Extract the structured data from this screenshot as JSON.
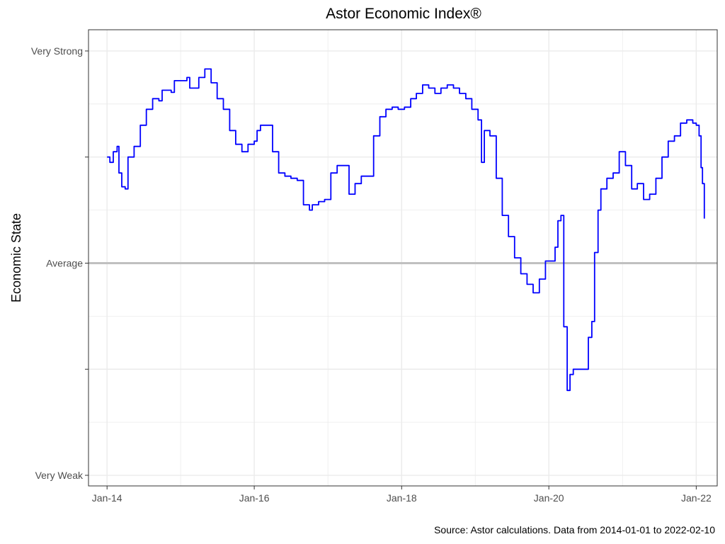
{
  "chart_data": {
    "type": "line",
    "title": "Astor Economic Index®",
    "ylabel": "Economic State",
    "xlabel": "",
    "caption": "Source: Astor calculations. Data from 2014-01-01 to 2022-02-10",
    "xlim": [
      "2013-10-01",
      "2022-04-15"
    ],
    "ylim": [
      -2.1,
      2.2
    ],
    "x_ticks": [
      {
        "date": "2014-01-01",
        "label": "Jan-14"
      },
      {
        "date": "2016-01-01",
        "label": "Jan-16"
      },
      {
        "date": "2018-01-01",
        "label": "Jan-18"
      },
      {
        "date": "2020-01-01",
        "label": "Jan-20"
      },
      {
        "date": "2022-01-01",
        "label": "Jan-22"
      }
    ],
    "y_ticks": [
      {
        "value": 2,
        "label": "Very Strong"
      },
      {
        "value": 1,
        "label": ""
      },
      {
        "value": 0,
        "label": "Average"
      },
      {
        "value": -1,
        "label": ""
      },
      {
        "value": -2,
        "label": "Very Weak"
      }
    ],
    "reference_line": {
      "value": 0,
      "color": "#c0c0c0"
    },
    "grid": true,
    "colors": {
      "series": "#0000ff",
      "grid": "#ebebeb",
      "border": "#333333"
    },
    "series": [
      {
        "values": [
          [
            "2014-01-01",
            1.0
          ],
          [
            "2014-01-15",
            0.95
          ],
          [
            "2014-02-01",
            1.05
          ],
          [
            "2014-02-20",
            1.1
          ],
          [
            "2014-03-01",
            0.85
          ],
          [
            "2014-03-15",
            0.72
          ],
          [
            "2014-04-01",
            0.7
          ],
          [
            "2014-04-15",
            1.0
          ],
          [
            "2014-05-15",
            1.1
          ],
          [
            "2014-06-15",
            1.3
          ],
          [
            "2014-07-15",
            1.45
          ],
          [
            "2014-08-15",
            1.55
          ],
          [
            "2014-09-15",
            1.53
          ],
          [
            "2014-10-01",
            1.63
          ],
          [
            "2014-11-15",
            1.61
          ],
          [
            "2014-12-01",
            1.72
          ],
          [
            "2015-02-01",
            1.75
          ],
          [
            "2015-02-15",
            1.65
          ],
          [
            "2015-04-01",
            1.75
          ],
          [
            "2015-05-01",
            1.83
          ],
          [
            "2015-06-01",
            1.7
          ],
          [
            "2015-07-01",
            1.55
          ],
          [
            "2015-08-01",
            1.45
          ],
          [
            "2015-09-01",
            1.25
          ],
          [
            "2015-10-01",
            1.12
          ],
          [
            "2015-11-01",
            1.05
          ],
          [
            "2015-12-01",
            1.12
          ],
          [
            "2016-01-01",
            1.15
          ],
          [
            "2016-01-15",
            1.25
          ],
          [
            "2016-02-01",
            1.3
          ],
          [
            "2016-03-01",
            1.3
          ],
          [
            "2016-04-01",
            1.05
          ],
          [
            "2016-05-01",
            0.85
          ],
          [
            "2016-06-01",
            0.82
          ],
          [
            "2016-07-01",
            0.8
          ],
          [
            "2016-08-01",
            0.78
          ],
          [
            "2016-09-01",
            0.55
          ],
          [
            "2016-10-01",
            0.5
          ],
          [
            "2016-10-15",
            0.55
          ],
          [
            "2016-11-15",
            0.58
          ],
          [
            "2016-12-15",
            0.6
          ],
          [
            "2017-01-15",
            0.85
          ],
          [
            "2017-02-15",
            0.92
          ],
          [
            "2017-03-15",
            0.92
          ],
          [
            "2017-04-15",
            0.65
          ],
          [
            "2017-05-15",
            0.75
          ],
          [
            "2017-06-15",
            0.82
          ],
          [
            "2017-07-15",
            0.82
          ],
          [
            "2017-08-15",
            1.2
          ],
          [
            "2017-09-15",
            1.38
          ],
          [
            "2017-10-15",
            1.45
          ],
          [
            "2017-11-15",
            1.47
          ],
          [
            "2017-12-15",
            1.45
          ],
          [
            "2018-01-15",
            1.47
          ],
          [
            "2018-02-15",
            1.55
          ],
          [
            "2018-03-15",
            1.6
          ],
          [
            "2018-04-15",
            1.68
          ],
          [
            "2018-05-15",
            1.65
          ],
          [
            "2018-06-15",
            1.6
          ],
          [
            "2018-07-15",
            1.65
          ],
          [
            "2018-08-15",
            1.68
          ],
          [
            "2018-09-15",
            1.65
          ],
          [
            "2018-10-15",
            1.6
          ],
          [
            "2018-11-15",
            1.55
          ],
          [
            "2018-12-15",
            1.45
          ],
          [
            "2019-01-15",
            1.35
          ],
          [
            "2019-02-01",
            0.95
          ],
          [
            "2019-02-15",
            1.25
          ],
          [
            "2019-03-15",
            1.2
          ],
          [
            "2019-04-15",
            0.8
          ],
          [
            "2019-05-15",
            0.45
          ],
          [
            "2019-06-15",
            0.25
          ],
          [
            "2019-07-15",
            0.05
          ],
          [
            "2019-08-15",
            -0.1
          ],
          [
            "2019-09-15",
            -0.2
          ],
          [
            "2019-10-15",
            -0.28
          ],
          [
            "2019-11-15",
            -0.15
          ],
          [
            "2019-12-15",
            0.02
          ],
          [
            "2020-01-15",
            0.02
          ],
          [
            "2020-02-01",
            0.15
          ],
          [
            "2020-02-15",
            0.4
          ],
          [
            "2020-03-01",
            0.45
          ],
          [
            "2020-03-15",
            -0.6
          ],
          [
            "2020-04-01",
            -1.2
          ],
          [
            "2020-04-15",
            -1.05
          ],
          [
            "2020-05-01",
            -1.0
          ],
          [
            "2020-07-01",
            -1.0
          ],
          [
            "2020-07-15",
            -0.7
          ],
          [
            "2020-08-01",
            -0.55
          ],
          [
            "2020-08-15",
            0.1
          ],
          [
            "2020-09-01",
            0.5
          ],
          [
            "2020-09-15",
            0.7
          ],
          [
            "2020-10-15",
            0.8
          ],
          [
            "2020-11-15",
            0.85
          ],
          [
            "2020-12-15",
            1.05
          ],
          [
            "2021-01-15",
            0.92
          ],
          [
            "2021-02-15",
            0.7
          ],
          [
            "2021-03-15",
            0.75
          ],
          [
            "2021-04-15",
            0.6
          ],
          [
            "2021-05-15",
            0.65
          ],
          [
            "2021-06-15",
            0.8
          ],
          [
            "2021-07-15",
            1.0
          ],
          [
            "2021-08-15",
            1.15
          ],
          [
            "2021-09-15",
            1.2
          ],
          [
            "2021-10-15",
            1.32
          ],
          [
            "2021-11-15",
            1.35
          ],
          [
            "2021-12-15",
            1.32
          ],
          [
            "2022-01-01",
            1.3
          ],
          [
            "2022-01-15",
            1.2
          ],
          [
            "2022-01-25",
            0.9
          ],
          [
            "2022-02-01",
            0.75
          ],
          [
            "2022-02-10",
            0.42
          ]
        ]
      }
    ]
  }
}
